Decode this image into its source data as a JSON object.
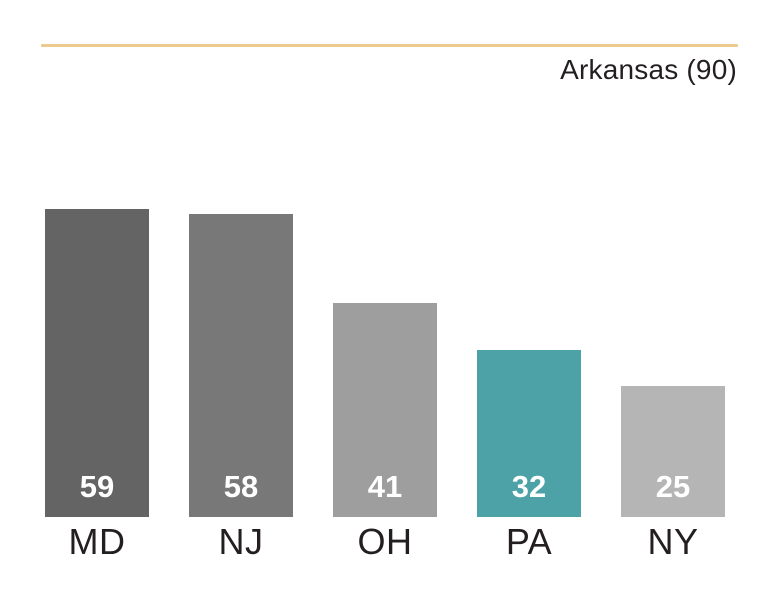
{
  "page": {
    "background": "#ffffff"
  },
  "chart_data": {
    "type": "bar",
    "categories": [
      "MD",
      "NJ",
      "OH",
      "PA",
      "NY"
    ],
    "values": [
      59,
      58,
      41,
      32,
      25
    ],
    "bar_colors": [
      "#646464",
      "#787878",
      "#9e9e9e",
      "#4ca2a6",
      "#b5b5b5"
    ],
    "highlight_category": "PA",
    "highlight_color": "#4ca2a6",
    "value_label_color": "#ffffff",
    "category_label_color": "#231f20",
    "title": "",
    "xlabel": "",
    "ylabel": "",
    "ylim": [
      0,
      90
    ],
    "grid": false,
    "legend": false,
    "value_labels_shown": true,
    "reference": {
      "label": "Arkansas (90)",
      "value": 90,
      "line_color": "#ecc98e",
      "label_color": "#231f20"
    }
  }
}
